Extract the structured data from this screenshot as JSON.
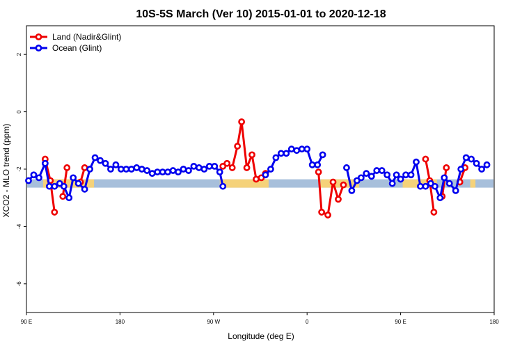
{
  "chart_data": {
    "type": "line",
    "title": "10S-5S March (Ver 10)   2015-01-01 to 2020-12-18",
    "xlabel": "Longitude (deg E)",
    "ylabel": "XCO2 - MLO trend (ppm)",
    "xlim": [
      90,
      540
    ],
    "ylim": [
      -7,
      3
    ],
    "x_ticks": [
      {
        "value": 90,
        "label": "90 E"
      },
      {
        "value": 180,
        "label": "180"
      },
      {
        "value": 270,
        "label": "90 W"
      },
      {
        "value": 360,
        "label": "0"
      },
      {
        "value": 450,
        "label": "90 E"
      },
      {
        "value": 540,
        "label": "180"
      }
    ],
    "y_ticks": [
      {
        "value": 2,
        "label": "2"
      },
      {
        "value": 0,
        "label": "0"
      },
      {
        "value": -2,
        "label": "-2"
      },
      {
        "value": -4,
        "label": "-4"
      },
      {
        "value": -6,
        "label": "-6"
      }
    ],
    "grid": false,
    "legend_position": "top-left",
    "surface_band": {
      "y": -2.5,
      "ocean_color": "#a7bfdb",
      "land_color": "#f5d27a",
      "land_ranges": [
        [
          106,
          155
        ],
        [
          276,
          323
        ],
        [
          373,
          410
        ],
        [
          452,
          485
        ],
        [
          517,
          522
        ]
      ]
    },
    "series": [
      {
        "name": "Land (Nadir&Glint)",
        "color": "#ee0000",
        "segments": [
          [
            [
              108,
              -1.65
            ],
            [
              113,
              -2.4
            ],
            [
              117,
              -3.5
            ]
          ],
          [
            [
              125,
              -2.95
            ],
            [
              129,
              -1.95
            ]
          ],
          [
            [
              142,
              -2.45
            ],
            [
              146,
              -1.95
            ]
          ],
          [
            [
              279,
              -1.9
            ],
            [
              283,
              -1.8
            ],
            [
              288,
              -1.95
            ],
            [
              293,
              -1.2
            ],
            [
              297,
              -0.35
            ],
            [
              302,
              -1.95
            ],
            [
              307,
              -1.5
            ],
            [
              311,
              -2.35
            ],
            [
              316,
              -2.3
            ],
            [
              320,
              -2.15
            ]
          ],
          [
            [
              371,
              -2.1
            ],
            [
              374,
              -3.5
            ],
            [
              380,
              -3.6
            ],
            [
              385,
              -2.45
            ],
            [
              390,
              -3.05
            ],
            [
              395,
              -2.55
            ]
          ],
          [
            [
              474,
              -1.65
            ],
            [
              478,
              -2.4
            ],
            [
              482,
              -3.5
            ]
          ],
          [
            [
              490,
              -2.95
            ],
            [
              494,
              -1.95
            ]
          ],
          [
            [
              507,
              -2.45
            ],
            [
              512,
              -1.95
            ]
          ]
        ]
      },
      {
        "name": "Ocean (Glint)",
        "color": "#0000ee",
        "segments": [
          [
            [
              92,
              -2.4
            ],
            [
              97,
              -2.2
            ],
            [
              102,
              -2.3
            ],
            [
              108,
              -1.8
            ],
            [
              112,
              -2.6
            ],
            [
              117,
              -2.6
            ],
            [
              122,
              -2.5
            ],
            [
              126,
              -2.6
            ],
            [
              131,
              -3.0
            ],
            [
              135,
              -2.3
            ],
            [
              140,
              -2.5
            ],
            [
              146,
              -2.7
            ],
            [
              151,
              -2.0
            ],
            [
              156,
              -1.6
            ],
            [
              161,
              -1.7
            ],
            [
              166,
              -1.8
            ],
            [
              171,
              -2.0
            ],
            [
              176,
              -1.85
            ],
            [
              181,
              -2.0
            ],
            [
              186,
              -2.0
            ],
            [
              191,
              -2.0
            ],
            [
              196,
              -1.95
            ],
            [
              201,
              -2.0
            ],
            [
              206,
              -2.05
            ],
            [
              211,
              -2.15
            ],
            [
              216,
              -2.1
            ],
            [
              221,
              -2.1
            ],
            [
              226,
              -2.1
            ],
            [
              231,
              -2.05
            ],
            [
              236,
              -2.1
            ],
            [
              241,
              -2.0
            ],
            [
              246,
              -2.05
            ],
            [
              251,
              -1.9
            ],
            [
              256,
              -1.95
            ],
            [
              261,
              -2.0
            ],
            [
              266,
              -1.9
            ],
            [
              271,
              -1.9
            ],
            [
              276,
              -2.1
            ],
            [
              279,
              -2.6
            ]
          ],
          [
            [
              320,
              -2.2
            ],
            [
              325,
              -2.0
            ],
            [
              330,
              -1.6
            ],
            [
              335,
              -1.45
            ],
            [
              340,
              -1.45
            ],
            [
              345,
              -1.3
            ],
            [
              350,
              -1.35
            ],
            [
              355,
              -1.3
            ],
            [
              360,
              -1.3
            ],
            [
              365,
              -1.85
            ],
            [
              370,
              -1.85
            ],
            [
              375,
              -1.5
            ]
          ],
          [
            [
              398,
              -1.95
            ],
            [
              403,
              -2.75
            ],
            [
              408,
              -2.4
            ],
            [
              412,
              -2.3
            ],
            [
              417,
              -2.15
            ],
            [
              422,
              -2.25
            ],
            [
              427,
              -2.05
            ],
            [
              432,
              -2.05
            ],
            [
              437,
              -2.2
            ],
            [
              442,
              -2.5
            ],
            [
              446,
              -2.2
            ],
            [
              450,
              -2.35
            ],
            [
              455,
              -2.2
            ],
            [
              460,
              -2.2
            ],
            [
              465,
              -1.75
            ],
            [
              469,
              -2.6
            ],
            [
              474,
              -2.6
            ],
            [
              479,
              -2.5
            ],
            [
              483,
              -2.6
            ],
            [
              488,
              -3.0
            ],
            [
              492,
              -2.3
            ],
            [
              497,
              -2.5
            ],
            [
              503,
              -2.75
            ],
            [
              508,
              -2.0
            ],
            [
              513,
              -1.6
            ],
            [
              518,
              -1.65
            ],
            [
              523,
              -1.8
            ],
            [
              528,
              -2.0
            ],
            [
              533,
              -1.85
            ]
          ]
        ]
      }
    ]
  }
}
